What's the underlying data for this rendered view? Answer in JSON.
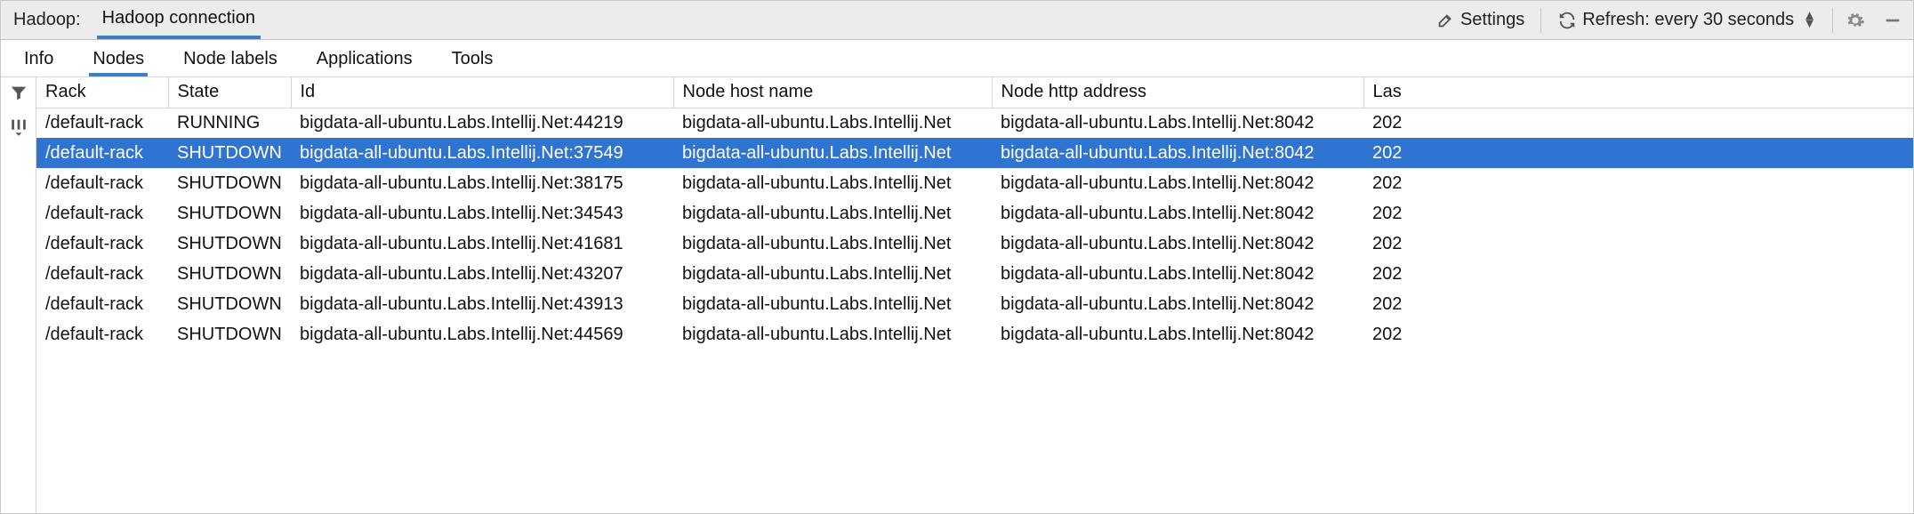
{
  "colors": {
    "accent": "#3b7fc4",
    "selection": "#2f74d0",
    "toolbar_bg": "#ececec",
    "border": "#c9c9c9"
  },
  "topbar": {
    "label": "Hadoop:",
    "connection": "Hadoop connection",
    "settings_label": "Settings",
    "refresh_label": "Refresh: every 30 seconds"
  },
  "tabs": [
    {
      "label": "Info",
      "active": false
    },
    {
      "label": "Nodes",
      "active": true
    },
    {
      "label": "Node labels",
      "active": false
    },
    {
      "label": "Applications",
      "active": false
    },
    {
      "label": "Tools",
      "active": false
    }
  ],
  "columns": [
    "Rack",
    "State",
    "Id",
    "Node host name",
    "Node http address",
    "Las"
  ],
  "selected_row": 1,
  "rows": [
    {
      "rack": "/default-rack",
      "state": "RUNNING",
      "id": "bigdata-all-ubuntu.Labs.Intellij.Net:44219",
      "host": "bigdata-all-ubuntu.Labs.Intellij.Net",
      "http": "bigdata-all-ubuntu.Labs.Intellij.Net:8042",
      "last": "202"
    },
    {
      "rack": "/default-rack",
      "state": "SHUTDOWN",
      "id": "bigdata-all-ubuntu.Labs.Intellij.Net:37549",
      "host": "bigdata-all-ubuntu.Labs.Intellij.Net",
      "http": "bigdata-all-ubuntu.Labs.Intellij.Net:8042",
      "last": "202"
    },
    {
      "rack": "/default-rack",
      "state": "SHUTDOWN",
      "id": "bigdata-all-ubuntu.Labs.Intellij.Net:38175",
      "host": "bigdata-all-ubuntu.Labs.Intellij.Net",
      "http": "bigdata-all-ubuntu.Labs.Intellij.Net:8042",
      "last": "202"
    },
    {
      "rack": "/default-rack",
      "state": "SHUTDOWN",
      "id": "bigdata-all-ubuntu.Labs.Intellij.Net:34543",
      "host": "bigdata-all-ubuntu.Labs.Intellij.Net",
      "http": "bigdata-all-ubuntu.Labs.Intellij.Net:8042",
      "last": "202"
    },
    {
      "rack": "/default-rack",
      "state": "SHUTDOWN",
      "id": "bigdata-all-ubuntu.Labs.Intellij.Net:41681",
      "host": "bigdata-all-ubuntu.Labs.Intellij.Net",
      "http": "bigdata-all-ubuntu.Labs.Intellij.Net:8042",
      "last": "202"
    },
    {
      "rack": "/default-rack",
      "state": "SHUTDOWN",
      "id": "bigdata-all-ubuntu.Labs.Intellij.Net:43207",
      "host": "bigdata-all-ubuntu.Labs.Intellij.Net",
      "http": "bigdata-all-ubuntu.Labs.Intellij.Net:8042",
      "last": "202"
    },
    {
      "rack": "/default-rack",
      "state": "SHUTDOWN",
      "id": "bigdata-all-ubuntu.Labs.Intellij.Net:43913",
      "host": "bigdata-all-ubuntu.Labs.Intellij.Net",
      "http": "bigdata-all-ubuntu.Labs.Intellij.Net:8042",
      "last": "202"
    },
    {
      "rack": "/default-rack",
      "state": "SHUTDOWN",
      "id": "bigdata-all-ubuntu.Labs.Intellij.Net:44569",
      "host": "bigdata-all-ubuntu.Labs.Intellij.Net",
      "http": "bigdata-all-ubuntu.Labs.Intellij.Net:8042",
      "last": "202"
    }
  ]
}
